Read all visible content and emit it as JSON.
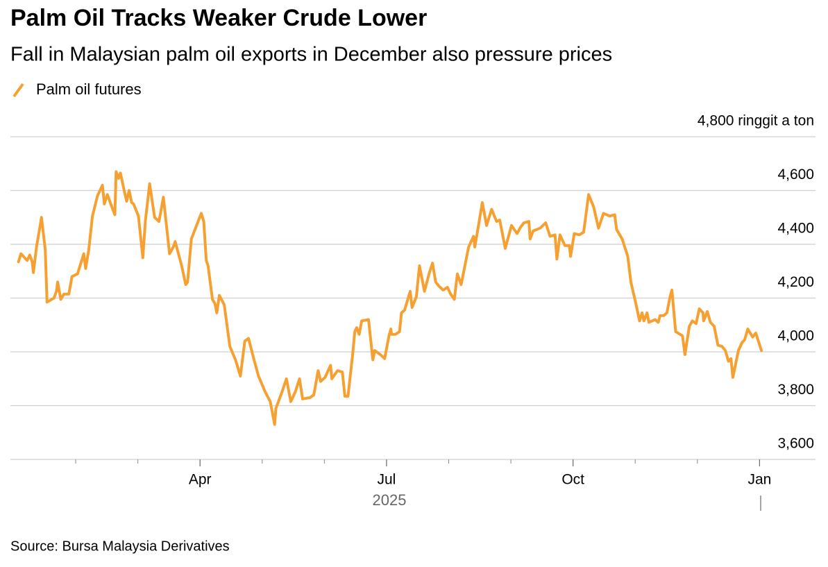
{
  "chart_data": {
    "type": "line",
    "title": "Palm Oil Tracks Weaker Crude Lower",
    "subtitle": "Fall in Malaysian palm oil exports in December also pressure prices",
    "source": "Source: Bursa Malaysia Derivatives",
    "x_sublabel": "2025",
    "xlim": [
      -0.05,
      12.9
    ],
    "xticks": [
      {
        "value": 3,
        "label": "Apr"
      },
      {
        "value": 6,
        "label": "Jul"
      },
      {
        "value": 9,
        "label": "Oct"
      },
      {
        "value": 12,
        "label": "Jan"
      }
    ],
    "minor_xticks": [
      1,
      2,
      4,
      5,
      7,
      8,
      10,
      11
    ],
    "ylim": [
      3600,
      4800
    ],
    "yticks": [
      {
        "value": 3600,
        "label": "3,600"
      },
      {
        "value": 3800,
        "label": "3,800"
      },
      {
        "value": 4000,
        "label": "4,000"
      },
      {
        "value": 4200,
        "label": "4,200"
      },
      {
        "value": 4400,
        "label": "4,400"
      },
      {
        "value": 4600,
        "label": "4,600"
      },
      {
        "value": 4800,
        "label": "4,800 ringgit a ton"
      }
    ],
    "grid": true,
    "x": [
      0.08,
      0.12,
      0.22,
      0.26,
      0.3,
      0.32,
      0.37,
      0.45,
      0.51,
      0.54,
      0.65,
      0.69,
      0.71,
      0.76,
      0.81,
      0.89,
      0.94,
      1.03,
      1.13,
      1.16,
      1.21,
      1.27,
      1.35,
      1.43,
      1.46,
      1.51,
      1.58,
      1.63,
      1.65,
      1.69,
      1.72,
      1.79,
      1.82,
      1.86,
      1.9,
      1.93,
      2.01,
      2.08,
      2.12,
      2.19,
      2.27,
      2.34,
      2.41,
      2.51,
      2.57,
      2.6,
      2.7,
      2.77,
      2.8,
      2.86,
      3.02,
      3.06,
      3.1,
      3.13,
      3.2,
      3.24,
      3.27,
      3.31,
      3.39,
      3.48,
      3.57,
      3.65,
      3.72,
      3.78,
      3.87,
      3.94,
      4.05,
      4.13,
      4.2,
      4.22,
      4.31,
      4.39,
      4.46,
      4.53,
      4.6,
      4.65,
      4.77,
      4.83,
      4.9,
      4.94,
      5.01,
      5.1,
      5.12,
      5.21,
      5.29,
      5.33,
      5.38,
      5.45,
      5.49,
      5.52,
      5.56,
      5.6,
      5.71,
      5.78,
      5.81,
      5.9,
      5.97,
      6.04,
      6.07,
      6.08,
      6.14,
      6.21,
      6.24,
      6.29,
      6.38,
      6.41,
      6.48,
      6.53,
      6.61,
      6.69,
      6.74,
      6.79,
      6.84,
      6.91,
      6.98,
      7.03,
      7.09,
      7.14,
      7.2,
      7.23,
      7.32,
      7.4,
      7.42,
      7.49,
      7.54,
      7.61,
      7.69,
      7.77,
      7.82,
      7.91,
      8.01,
      8.1,
      8.16,
      8.21,
      8.29,
      8.31,
      8.36,
      8.47,
      8.56,
      8.63,
      8.71,
      8.74,
      8.79,
      8.87,
      8.94,
      8.96,
      9.02,
      9.1,
      9.17,
      9.25,
      9.33,
      9.41,
      9.49,
      9.59,
      9.67,
      9.7,
      9.79,
      9.88,
      9.93,
      10.01,
      10.07,
      10.11,
      10.14,
      10.19,
      10.22,
      10.27,
      10.32,
      10.37,
      10.4,
      10.46,
      10.51,
      10.56,
      10.59,
      10.65,
      10.76,
      10.8,
      10.87,
      10.92,
      10.98,
      11.03,
      11.09,
      11.1,
      11.16,
      11.21,
      11.27,
      11.33,
      11.4,
      11.45,
      11.5,
      11.54,
      11.57,
      11.66,
      11.72,
      11.76,
      11.81,
      11.89,
      11.94,
      12.03
    ],
    "series": [
      {
        "name": "Palm oil futures",
        "color": "#f5a031",
        "values": [
          4335,
          4365,
          4340,
          4360,
          4335,
          4295,
          4390,
          4500,
          4380,
          4185,
          4200,
          4225,
          4260,
          4195,
          4215,
          4215,
          4280,
          4290,
          4365,
          4310,
          4380,
          4505,
          4580,
          4620,
          4550,
          4585,
          4540,
          4510,
          4670,
          4645,
          4665,
          4590,
          4560,
          4600,
          4555,
          4550,
          4505,
          4350,
          4485,
          4625,
          4500,
          4485,
          4575,
          4365,
          4390,
          4410,
          4325,
          4250,
          4260,
          4420,
          4515,
          4485,
          4340,
          4320,
          4195,
          4180,
          4145,
          4210,
          4175,
          4020,
          3970,
          3910,
          4040,
          4050,
          3970,
          3910,
          3850,
          3815,
          3730,
          3790,
          3845,
          3900,
          3815,
          3850,
          3900,
          3825,
          3830,
          3840,
          3930,
          3890,
          3905,
          3950,
          3900,
          3930,
          3925,
          3835,
          3835,
          3980,
          4075,
          4090,
          4065,
          4115,
          4120,
          3970,
          4005,
          3990,
          3975,
          4060,
          4085,
          4065,
          4065,
          4075,
          4145,
          4155,
          4225,
          4165,
          4205,
          4320,
          4225,
          4295,
          4330,
          4260,
          4245,
          4230,
          4240,
          4215,
          4195,
          4290,
          4250,
          4285,
          4390,
          4430,
          4390,
          4485,
          4555,
          4470,
          4530,
          4485,
          4490,
          4385,
          4470,
          4440,
          4465,
          4480,
          4485,
          4420,
          4450,
          4460,
          4480,
          4430,
          4435,
          4345,
          4435,
          4395,
          4395,
          4355,
          4440,
          4435,
          4445,
          4585,
          4540,
          4460,
          4515,
          4505,
          4510,
          4455,
          4420,
          4355,
          4260,
          4180,
          4115,
          4145,
          4115,
          4145,
          4110,
          4115,
          4120,
          4110,
          4135,
          4135,
          4145,
          4205,
          4230,
          4075,
          4060,
          3990,
          4095,
          4115,
          4105,
          4160,
          4145,
          4115,
          4150,
          4110,
          4095,
          4025,
          4020,
          4005,
          3965,
          3975,
          3905,
          4005,
          4035,
          4045,
          4085,
          4055,
          4070,
          4005
        ]
      }
    ]
  }
}
